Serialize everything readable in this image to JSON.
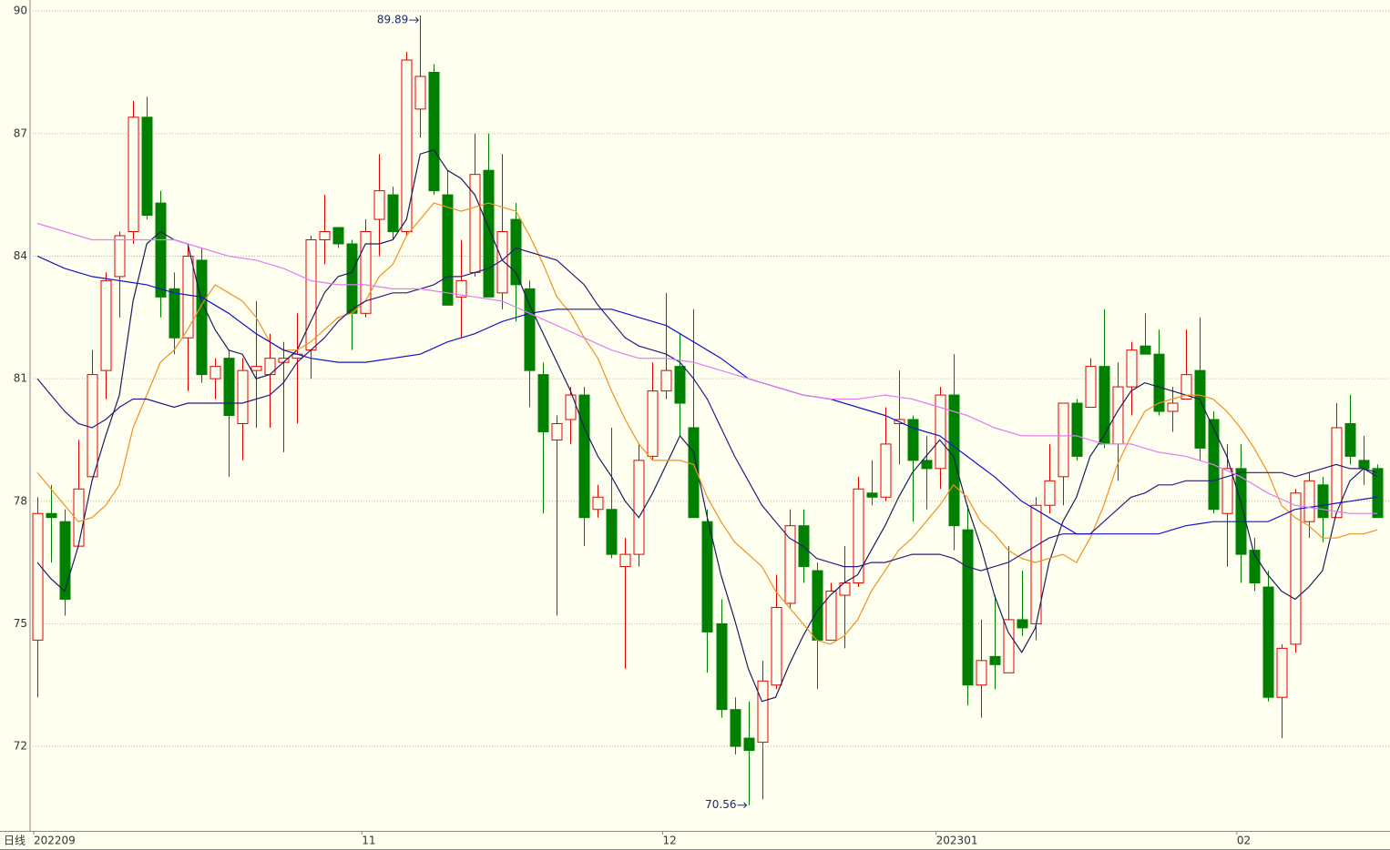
{
  "chart_data": {
    "type": "candlestick",
    "period_label": "日线",
    "categories": [
      "202209",
      null,
      null,
      null,
      null,
      null,
      null,
      null,
      null,
      null,
      null,
      null,
      null,
      null,
      null,
      null,
      null,
      null,
      null,
      null,
      null,
      null,
      null,
      null,
      "11",
      null,
      null,
      null,
      null,
      null,
      null,
      null,
      null,
      null,
      null,
      null,
      null,
      null,
      null,
      null,
      null,
      null,
      null,
      null,
      null,
      null,
      "12",
      null,
      null,
      null,
      null,
      null,
      null,
      null,
      null,
      null,
      null,
      null,
      null,
      null,
      null,
      null,
      null,
      null,
      null,
      null,
      "202301",
      null,
      null,
      null,
      null,
      null,
      null,
      null,
      null,
      null,
      null,
      null,
      null,
      null,
      null,
      null,
      null,
      null,
      null,
      null,
      null,
      null,
      "02",
      null,
      null,
      null,
      null,
      null,
      null,
      null,
      null,
      null,
      null
    ],
    "open": [
      74.6,
      77.7,
      77.5,
      76.9,
      78.6,
      81.2,
      83.5,
      84.6,
      87.4,
      85.3,
      83.2,
      82.0,
      83.9,
      81.0,
      81.5,
      79.9,
      81.2,
      81.1,
      81.4,
      81.5,
      81.7,
      84.4,
      84.7,
      84.3,
      82.6,
      84.9,
      85.5,
      84.6,
      87.6,
      88.5,
      85.5,
      83.0,
      83.6,
      86.1,
      83.1,
      84.9,
      83.2,
      81.1,
      79.5,
      80.0,
      80.6,
      77.8,
      77.8,
      76.4,
      76.7,
      79.1,
      80.7,
      81.3,
      79.8,
      77.5,
      75.0,
      72.9,
      72.2,
      72.1,
      73.5,
      75.5,
      77.4,
      76.3,
      74.6,
      75.7,
      76.0,
      78.2,
      78.1,
      79.9,
      80.0,
      79.0,
      78.8,
      80.6,
      77.3,
      73.5,
      74.2,
      73.8,
      75.1,
      75.0,
      77.9,
      78.6,
      80.4,
      80.3,
      81.3,
      79.4,
      80.8,
      81.8,
      81.6,
      80.2,
      80.5,
      81.2,
      80.0,
      77.7,
      78.8,
      76.8,
      75.9,
      73.2,
      74.5,
      77.5,
      78.4,
      77.6,
      79.9,
      79.0,
      78.8
    ],
    "high": [
      78.1,
      78.4,
      77.8,
      79.5,
      81.7,
      83.6,
      84.6,
      87.8,
      87.9,
      85.6,
      83.6,
      84.3,
      84.2,
      81.5,
      81.7,
      81.5,
      82.9,
      82.1,
      81.9,
      82.6,
      84.5,
      85.5,
      84.7,
      84.4,
      84.9,
      86.5,
      85.7,
      89.0,
      89.89,
      88.7,
      86.1,
      84.4,
      87.0,
      87.0,
      86.5,
      85.3,
      83.4,
      81.4,
      80.1,
      80.8,
      80.8,
      78.4,
      79.8,
      77.1,
      79.4,
      81.4,
      83.1,
      82.1,
      82.7,
      77.8,
      75.6,
      73.2,
      73.1,
      74.1,
      76.2,
      77.8,
      77.8,
      76.5,
      76.0,
      76.9,
      78.6,
      79.0,
      80.3,
      81.2,
      80.1,
      79.6,
      80.8,
      81.6,
      77.9,
      75.1,
      75.7,
      76.9,
      76.3,
      78.1,
      79.4,
      80.4,
      80.5,
      81.5,
      82.7,
      81.4,
      81.9,
      82.6,
      82.2,
      80.8,
      82.2,
      82.5,
      80.2,
      79.4,
      79.4,
      77.1,
      76.3,
      74.5,
      78.3,
      78.7,
      78.6,
      80.4,
      80.6,
      79.6,
      78.9
    ],
    "low": [
      73.2,
      76.5,
      75.2,
      76.9,
      78.6,
      80.5,
      82.5,
      84.3,
      84.9,
      82.5,
      81.6,
      80.7,
      80.9,
      80.5,
      78.6,
      79.0,
      79.8,
      79.8,
      79.2,
      79.9,
      81.0,
      83.8,
      84.2,
      81.7,
      82.5,
      84.0,
      84.4,
      84.5,
      86.9,
      85.5,
      82.8,
      82.0,
      83.5,
      83.0,
      82.7,
      82.4,
      80.3,
      77.7,
      75.2,
      79.4,
      76.9,
      77.6,
      76.6,
      73.9,
      76.4,
      79.0,
      80.5,
      79.6,
      77.6,
      73.8,
      72.7,
      71.8,
      70.56,
      70.7,
      73.4,
      75.4,
      76.0,
      73.4,
      74.6,
      74.4,
      75.9,
      77.9,
      78.0,
      78.9,
      77.5,
      77.8,
      78.3,
      76.8,
      73.0,
      72.7,
      73.4,
      73.8,
      74.7,
      74.6,
      77.7,
      77.9,
      79.0,
      80.3,
      79.3,
      78.5,
      80.1,
      81.6,
      80.1,
      79.7,
      80.5,
      79.0,
      77.7,
      76.4,
      76.0,
      75.8,
      73.1,
      72.2,
      74.3,
      77.1,
      77.0,
      77.6,
      78.9,
      78.4,
      77.6
    ],
    "close": [
      77.7,
      77.6,
      75.6,
      78.3,
      81.1,
      83.4,
      84.5,
      87.4,
      85.0,
      83.0,
      82.0,
      84.0,
      81.1,
      81.3,
      80.1,
      81.2,
      81.3,
      81.5,
      81.5,
      81.6,
      84.4,
      84.6,
      84.3,
      82.6,
      84.6,
      85.6,
      84.6,
      88.8,
      88.4,
      85.6,
      82.8,
      83.4,
      86.0,
      83.0,
      84.6,
      83.3,
      81.2,
      79.7,
      79.9,
      80.6,
      77.6,
      78.1,
      76.7,
      76.7,
      79.0,
      80.7,
      81.2,
      80.4,
      77.6,
      74.8,
      72.9,
      72.0,
      71.9,
      73.6,
      75.4,
      77.4,
      76.4,
      74.6,
      75.8,
      76.0,
      78.3,
      78.1,
      79.4,
      80.0,
      79.0,
      78.8,
      80.6,
      77.4,
      73.5,
      74.1,
      74.0,
      75.1,
      74.9,
      77.9,
      78.5,
      80.4,
      79.1,
      81.3,
      79.4,
      80.8,
      81.7,
      81.6,
      80.2,
      80.4,
      81.1,
      79.3,
      77.8,
      78.8,
      76.7,
      76.0,
      73.2,
      74.4,
      78.2,
      78.5,
      77.6,
      79.8,
      79.1,
      78.8,
      77.6
    ],
    "up_color": "#e00000",
    "down_color": "#008000",
    "ma_lines": [
      {
        "color": "#1c1c5c",
        "values": [
          76.5,
          76.1,
          75.8,
          76.9,
          78.5,
          79.6,
          80.6,
          82.9,
          84.3,
          84.6,
          84.4,
          84.3,
          82.9,
          82.2,
          81.7,
          81.6,
          81.0,
          81.1,
          81.4,
          81.7,
          82.4,
          83.1,
          83.5,
          83.6,
          84.3,
          84.3,
          84.4,
          84.9,
          86.5,
          86.6,
          86.1,
          85.9,
          85.5,
          84.7,
          83.9,
          83.6,
          82.8,
          82.1,
          81.4,
          80.7,
          79.8,
          79.1,
          78.6,
          78.0,
          77.6,
          78.2,
          78.9,
          79.6,
          79.2,
          77.6,
          76.2,
          75.1,
          73.9,
          73.1,
          73.2,
          74.0,
          74.7,
          75.3,
          75.7,
          76.0,
          76.2,
          76.8,
          77.4,
          78.1,
          78.7,
          79.1,
          79.5,
          79.1,
          77.9,
          76.9,
          75.7,
          74.8,
          74.3,
          74.9,
          76.5,
          77.5,
          78.1,
          79.1,
          79.6,
          80.2,
          80.7,
          80.9,
          80.8,
          80.7,
          80.6,
          80.5,
          79.8,
          79.1,
          78.0,
          76.7,
          76.2,
          75.8,
          75.6,
          75.9,
          76.3,
          77.7,
          78.5,
          78.8,
          78.7
        ]
      },
      {
        "color": "#f0901e",
        "values": [
          78.7,
          78.3,
          77.9,
          77.5,
          77.6,
          77.9,
          78.4,
          79.8,
          80.6,
          81.4,
          81.7,
          82.2,
          82.8,
          83.3,
          83.1,
          82.9,
          82.5,
          81.9,
          81.7,
          81.7,
          81.9,
          82.2,
          82.5,
          82.6,
          82.9,
          83.5,
          83.8,
          84.5,
          84.9,
          85.3,
          85.2,
          85.1,
          85.2,
          85.3,
          85.2,
          85.1,
          84.5,
          83.8,
          83.0,
          82.6,
          82.0,
          81.5,
          80.7,
          80.0,
          79.4,
          79.0,
          79.0,
          79.0,
          78.9,
          78.1,
          77.5,
          77.0,
          76.7,
          76.4,
          75.8,
          75.4,
          75.0,
          74.6,
          74.5,
          74.7,
          75.1,
          75.8,
          76.3,
          76.8,
          77.1,
          77.5,
          77.9,
          78.4,
          78.1,
          77.5,
          77.2,
          76.8,
          76.6,
          76.5,
          76.6,
          76.7,
          76.5,
          77.1,
          77.9,
          78.9,
          79.6,
          80.2,
          80.4,
          80.5,
          80.6,
          80.6,
          80.5,
          80.2,
          79.8,
          79.3,
          78.7,
          77.9,
          77.6,
          77.4,
          77.1,
          77.1,
          77.2,
          77.2,
          77.3
        ]
      },
      {
        "color": "#2e1a80",
        "values": [
          81.0,
          80.6,
          80.2,
          79.9,
          79.8,
          80.0,
          80.3,
          80.5,
          80.5,
          80.4,
          80.3,
          80.4,
          80.4,
          80.4,
          80.4,
          80.4,
          80.5,
          80.6,
          80.9,
          81.4,
          81.7,
          82.0,
          82.4,
          82.7,
          82.9,
          83.0,
          83.1,
          83.1,
          83.2,
          83.3,
          83.5,
          83.5,
          83.6,
          83.7,
          83.9,
          84.2,
          84.1,
          84.0,
          83.9,
          83.6,
          83.3,
          82.8,
          82.4,
          82.0,
          81.8,
          81.7,
          81.6,
          81.4,
          81.0,
          80.5,
          79.8,
          79.1,
          78.5,
          77.9,
          77.5,
          77.1,
          76.9,
          76.6,
          76.5,
          76.4,
          76.4,
          76.5,
          76.5,
          76.6,
          76.7,
          76.7,
          76.7,
          76.6,
          76.4,
          76.3,
          76.4,
          76.5,
          76.7,
          76.9,
          77.1,
          77.2,
          77.2,
          77.2,
          77.5,
          77.8,
          78.1,
          78.2,
          78.4,
          78.4,
          78.5,
          78.5,
          78.5,
          78.6,
          78.7,
          78.7,
          78.7,
          78.7,
          78.6,
          78.7,
          78.8,
          78.9,
          78.8,
          78.8,
          78.6
        ]
      },
      {
        "color": "#1414c8",
        "values": [
          84.0,
          83.85,
          83.7,
          83.6,
          83.5,
          83.45,
          83.4,
          83.35,
          83.3,
          83.2,
          83.1,
          83.05,
          83.0,
          82.8,
          82.6,
          82.35,
          82.1,
          81.9,
          81.7,
          81.6,
          81.5,
          81.45,
          81.4,
          81.4,
          81.4,
          81.45,
          81.5,
          81.55,
          81.6,
          81.75,
          81.9,
          82.0,
          82.1,
          82.25,
          82.4,
          82.5,
          82.6,
          82.65,
          82.7,
          82.7,
          82.7,
          82.7,
          82.7,
          82.6,
          82.5,
          82.4,
          82.3,
          82.1,
          81.9,
          81.7,
          81.5,
          81.25,
          81.0,
          80.9,
          80.8,
          80.7,
          80.6,
          80.55,
          80.5,
          80.4,
          80.3,
          80.2,
          80.1,
          79.95,
          79.8,
          79.7,
          79.6,
          79.35,
          79.1,
          78.85,
          78.6,
          78.3,
          78.0,
          77.8,
          77.6,
          77.4,
          77.2,
          77.2,
          77.2,
          77.2,
          77.2,
          77.2,
          77.2,
          77.3,
          77.4,
          77.45,
          77.5,
          77.5,
          77.5,
          77.5,
          77.5,
          77.65,
          77.8,
          77.85,
          77.9,
          77.95,
          78.0,
          78.05,
          78.1
        ]
      },
      {
        "color": "#e27cf0",
        "values": [
          84.8,
          84.7,
          84.6,
          84.5,
          84.4,
          84.4,
          84.4,
          84.4,
          84.4,
          84.4,
          84.4,
          84.3,
          84.2,
          84.1,
          84.0,
          83.95,
          83.9,
          83.8,
          83.7,
          83.55,
          83.4,
          83.35,
          83.3,
          83.3,
          83.3,
          83.25,
          83.2,
          83.2,
          83.2,
          83.15,
          83.1,
          83.05,
          83.0,
          82.95,
          82.9,
          82.75,
          82.6,
          82.45,
          82.3,
          82.15,
          82.0,
          81.85,
          81.7,
          81.6,
          81.5,
          81.5,
          81.5,
          81.45,
          81.4,
          81.3,
          81.2,
          81.1,
          81.0,
          80.9,
          80.8,
          80.7,
          80.6,
          80.55,
          80.5,
          80.5,
          80.5,
          80.55,
          80.6,
          80.55,
          80.5,
          80.4,
          80.3,
          80.2,
          80.1,
          79.95,
          79.8,
          79.7,
          79.6,
          79.6,
          79.6,
          79.6,
          79.6,
          79.5,
          79.4,
          79.4,
          79.4,
          79.3,
          79.2,
          79.15,
          79.1,
          79.0,
          78.9,
          78.75,
          78.6,
          78.4,
          78.2,
          78.05,
          77.9,
          77.85,
          77.8,
          77.75,
          77.7,
          77.7,
          77.7
        ]
      }
    ],
    "extreme_labels": [
      89.89,
      70.56
    ],
    "ylim": [
      69.93,
      90.27
    ],
    "yticks": [
      72,
      75,
      78,
      81,
      84,
      87,
      90
    ],
    "grid": true
  }
}
